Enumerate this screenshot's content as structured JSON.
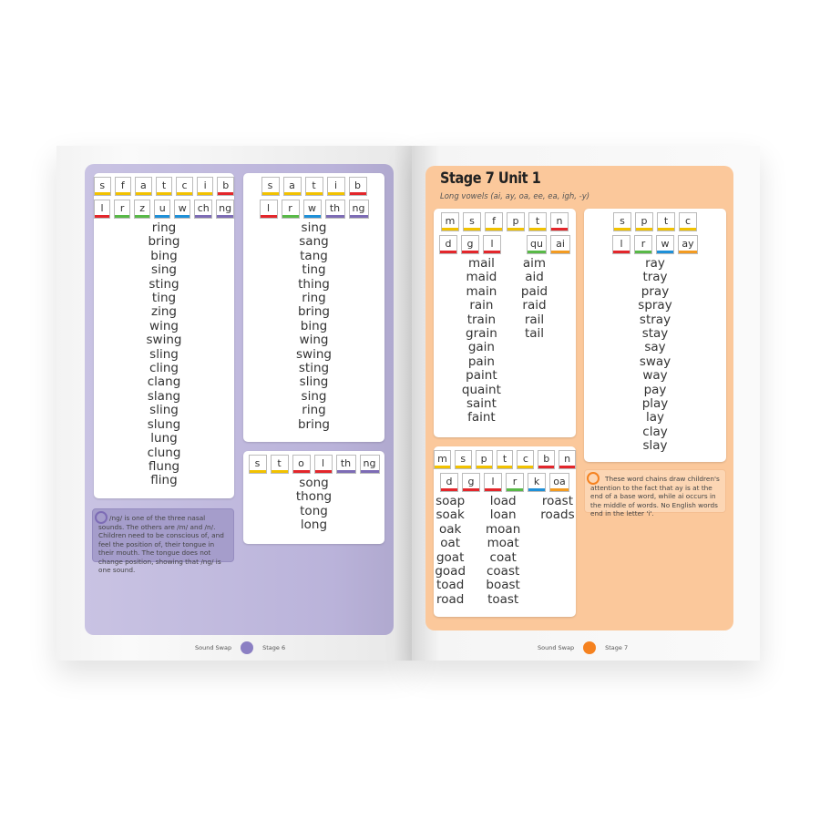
{
  "colors": {
    "y": "#f2c200",
    "r": "#e3262b",
    "g": "#58b947",
    "b": "#1e90d8",
    "p": "#7d6cb5",
    "o": "#f39b21",
    "left_panel": "#bab3da",
    "right_panel": "#fbc89b"
  },
  "left": {
    "card1": {
      "tiles": [
        [
          [
            "s",
            "y"
          ],
          [
            "f",
            "y"
          ],
          [
            "a",
            "y"
          ],
          [
            "t",
            "y"
          ],
          [
            "c",
            "y"
          ],
          [
            "i",
            "y"
          ],
          [
            "b",
            "r"
          ]
        ],
        [
          [
            "l",
            "r"
          ],
          [
            "r",
            "g"
          ],
          [
            "z",
            "g"
          ],
          [
            "u",
            "b"
          ],
          [
            "w",
            "b"
          ],
          [
            "ch",
            "p"
          ],
          [
            "ng",
            "p"
          ]
        ]
      ],
      "words": [
        [
          "ring",
          "bring",
          "bing",
          "sing",
          "sting",
          "ting",
          "zing",
          "wing",
          "swing",
          "sling",
          "cling",
          "clang",
          "slang",
          "sling",
          "slung",
          "lung",
          "clung",
          "flung",
          "fling"
        ]
      ]
    },
    "card2": {
      "tiles": [
        [
          [
            "s",
            "y"
          ],
          [
            "a",
            "y"
          ],
          [
            "t",
            "y"
          ],
          [
            "i",
            "y"
          ],
          [
            "b",
            "r"
          ]
        ],
        [
          [
            "l",
            "r"
          ],
          [
            "r",
            "g"
          ],
          [
            "w",
            "b"
          ],
          [
            "th",
            "p"
          ],
          [
            "ng",
            "p"
          ]
        ]
      ],
      "words": [
        [
          "sing",
          "sang",
          "tang",
          "ting",
          "thing",
          "ring",
          "bring",
          "bing",
          "wing",
          "swing",
          "sting",
          "sling",
          "sing",
          "ring",
          "bring"
        ]
      ]
    },
    "card3": {
      "tiles": [
        [
          [
            "s",
            "y"
          ],
          [
            "t",
            "y"
          ],
          [
            "o",
            "r"
          ],
          [
            "l",
            "r"
          ],
          [
            "th",
            "p"
          ],
          [
            "ng",
            "p"
          ]
        ]
      ],
      "words": [
        [
          "song",
          "thong",
          "tong",
          "long"
        ]
      ]
    },
    "note": "/ng/ is one of the three nasal sounds. The others are /m/ and /n/. Children need to be conscious of, and feel the position of, their tongue in their mouth. The tongue does not change position, showing that /ng/ is one sound.",
    "footer": {
      "book": "Sound Swap",
      "stage": "Stage 6"
    }
  },
  "right": {
    "title": "Stage 7 Unit 1",
    "subtitle": "Long vowels (ai, ay, oa, ee, ea, igh, -y)",
    "card1": {
      "tiles": [
        [
          [
            "m",
            "y"
          ],
          [
            "s",
            "y"
          ],
          [
            "f",
            "y"
          ],
          [
            "p",
            "y"
          ],
          [
            "t",
            "y"
          ],
          [
            "n",
            "r"
          ]
        ],
        [
          [
            "d",
            "r"
          ],
          [
            "g",
            "r"
          ],
          [
            "l",
            "r"
          ],
          [
            "",
            ""
          ],
          [
            "qu",
            "g"
          ],
          [
            "ai",
            "o"
          ]
        ]
      ],
      "words": [
        [
          "mail",
          "maid",
          "main",
          "rain",
          "train",
          "grain",
          "gain",
          "pain",
          "paint",
          "quaint",
          "saint",
          "faint"
        ],
        [
          "aim",
          "aid",
          "paid",
          "raid",
          "rail",
          "tail"
        ]
      ]
    },
    "card2": {
      "tiles": [
        [
          [
            "s",
            "y"
          ],
          [
            "p",
            "y"
          ],
          [
            "t",
            "y"
          ],
          [
            "c",
            "y"
          ]
        ],
        [
          [
            "l",
            "r"
          ],
          [
            "r",
            "g"
          ],
          [
            "w",
            "b"
          ],
          [
            "ay",
            "o"
          ]
        ]
      ],
      "words": [
        [
          "ray",
          "tray",
          "pray",
          "spray",
          "stray",
          "stay",
          "say",
          "sway",
          "way",
          "pay",
          "play",
          "lay",
          "clay",
          "slay"
        ]
      ]
    },
    "card3": {
      "tiles": [
        [
          [
            "m",
            "y"
          ],
          [
            "s",
            "y"
          ],
          [
            "p",
            "y"
          ],
          [
            "t",
            "y"
          ],
          [
            "c",
            "y"
          ],
          [
            "b",
            "r"
          ],
          [
            "n",
            "r"
          ]
        ],
        [
          [
            "d",
            "r"
          ],
          [
            "g",
            "r"
          ],
          [
            "l",
            "r"
          ],
          [
            "r",
            "g"
          ],
          [
            "k",
            "b"
          ],
          [
            "oa",
            "o"
          ]
        ]
      ],
      "words": [
        [
          "soap",
          "soak",
          "oak",
          "oat",
          "goat",
          "goad",
          "toad",
          "road"
        ],
        [
          "load",
          "loan",
          "moan",
          "moat",
          "coat",
          "coast",
          "boast",
          "toast"
        ],
        [
          "roast",
          "roads"
        ]
      ]
    },
    "note": "These word chains draw children's attention to the fact that ay is at the end of a base word, while ai occurs in the middle of words. No English words end in the letter 'i'.",
    "footer": {
      "book": "Sound Swap",
      "stage": "Stage 7"
    }
  }
}
